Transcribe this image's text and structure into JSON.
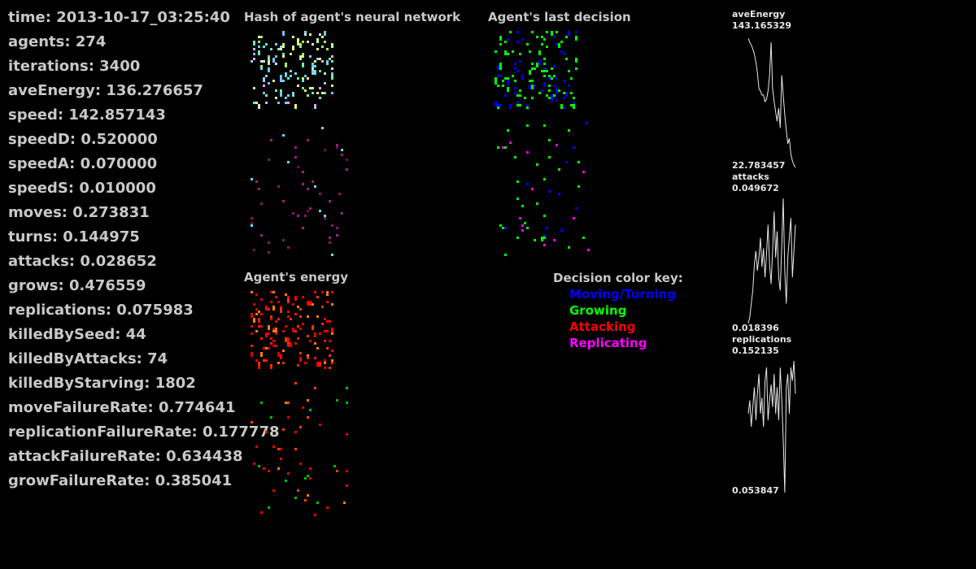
{
  "stats": [
    {
      "label": "time",
      "value": "2013-10-17_03:25:40"
    },
    {
      "label": "agents",
      "value": "274"
    },
    {
      "label": "iterations",
      "value": "3400"
    },
    {
      "label": "aveEnergy",
      "value": "136.276657"
    },
    {
      "label": "speed",
      "value": "142.857143"
    },
    {
      "label": "speedD",
      "value": "0.520000"
    },
    {
      "label": "speedA",
      "value": "0.070000"
    },
    {
      "label": "speedS",
      "value": "0.010000"
    },
    {
      "label": "moves",
      "value": "0.273831"
    },
    {
      "label": "turns",
      "value": "0.144975"
    },
    {
      "label": "attacks",
      "value": "0.028652"
    },
    {
      "label": "grows",
      "value": "0.476559"
    },
    {
      "label": "replications",
      "value": "0.075983"
    },
    {
      "label": "killedBySeed",
      "value": "44"
    },
    {
      "label": "killedByAttacks",
      "value": "74"
    },
    {
      "label": "killedByStarving",
      "value": "1802"
    },
    {
      "label": "moveFailureRate",
      "value": "0.774641"
    },
    {
      "label": "replicationFailureRate",
      "value": "0.177778"
    },
    {
      "label": "attackFailureRate",
      "value": "0.634438"
    },
    {
      "label": "growFailureRate",
      "value": "0.385041"
    }
  ],
  "panels": {
    "hash_title": "Hash of agent's neural network",
    "decision_title": "Agent's last decision",
    "energy_title": "Agent's energy"
  },
  "legend": {
    "title": "Decision color key:",
    "items": [
      {
        "label": "Moving/Turning",
        "color": "#0000ff"
      },
      {
        "label": "Growing",
        "color": "#00ff00"
      },
      {
        "label": "Attacking",
        "color": "#ff0000"
      },
      {
        "label": "Replicating",
        "color": "#ff00ff"
      }
    ]
  },
  "graphs": [
    {
      "name": "aveEnergy",
      "max": "143.165329",
      "min": "22.783457",
      "series": [
        0.98,
        0.95,
        0.93,
        0.9,
        0.86,
        0.8,
        0.72,
        0.6,
        0.58,
        0.55,
        0.55,
        0.5,
        0.52,
        0.58,
        0.7,
        0.95,
        0.6,
        0.5,
        0.42,
        0.35,
        0.45,
        0.3,
        0.7,
        0.55,
        0.4,
        0.28,
        0.18,
        0.22,
        0.1,
        0.05,
        0.02,
        0.0
      ]
    },
    {
      "name": "attacks",
      "max": "0.049672",
      "min": "0.018396",
      "series": [
        0.05,
        0.1,
        0.2,
        0.3,
        0.5,
        0.6,
        0.45,
        0.55,
        0.7,
        0.48,
        0.62,
        0.4,
        0.58,
        0.8,
        0.5,
        0.35,
        0.6,
        0.9,
        0.55,
        0.75,
        0.4,
        0.3,
        0.65,
        1.0,
        0.45,
        0.2,
        0.55,
        0.7,
        0.85,
        0.4,
        0.6,
        0.8
      ]
    },
    {
      "name": "replications",
      "max": "0.152135",
      "min": "0.053847",
      "series": [
        0.6,
        0.7,
        0.5,
        0.65,
        0.8,
        0.55,
        0.75,
        0.9,
        0.6,
        0.72,
        0.5,
        0.85,
        0.95,
        0.55,
        0.7,
        0.82,
        0.65,
        0.9,
        0.6,
        0.8,
        0.55,
        0.95,
        0.7,
        0.4,
        0.0,
        0.8,
        0.9,
        0.6,
        0.95,
        0.85,
        1.0,
        0.75
      ]
    }
  ]
}
